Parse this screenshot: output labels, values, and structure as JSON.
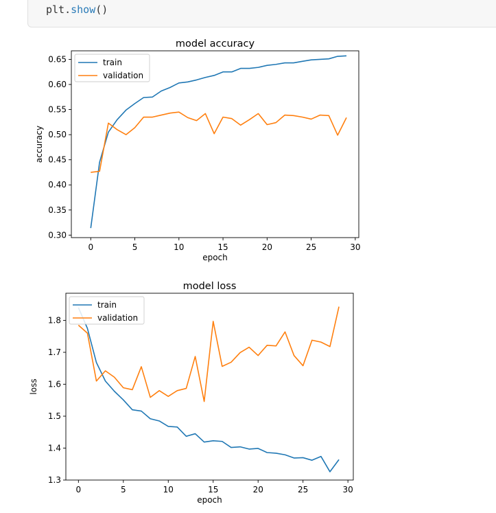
{
  "code_cell": {
    "object": "plt",
    "method": "show",
    "parens": "()"
  },
  "colors": {
    "train": "#1f77b4",
    "validation": "#ff7f0e",
    "code_background": "#f7f7f7",
    "code_border": "#e0e0e0"
  },
  "chart_data": [
    {
      "type": "line",
      "title": "model accuracy",
      "xlabel": "epoch",
      "ylabel": "accuracy",
      "xlim": [
        -2.2,
        30.4
      ],
      "ylim": [
        0.295,
        0.667
      ],
      "xticks": [
        0,
        5,
        10,
        15,
        20,
        25,
        30
      ],
      "yticks": [
        0.3,
        0.35,
        0.4,
        0.45,
        0.5,
        0.55,
        0.6,
        0.65
      ],
      "ytick_labels": [
        "0.30",
        "0.35",
        "0.40",
        "0.45",
        "0.50",
        "0.55",
        "0.60",
        "0.65"
      ],
      "legend_position": "top-left",
      "x": [
        0,
        1,
        2,
        3,
        4,
        5,
        6,
        7,
        8,
        9,
        10,
        11,
        12,
        13,
        14,
        15,
        16,
        17,
        18,
        19,
        20,
        21,
        22,
        23,
        24,
        25,
        26,
        27,
        28,
        29
      ],
      "series": [
        {
          "name": "train",
          "color": "#1f77b4",
          "values": [
            0.314,
            0.445,
            0.505,
            0.53,
            0.549,
            0.562,
            0.574,
            0.575,
            0.587,
            0.594,
            0.603,
            0.605,
            0.609,
            0.614,
            0.618,
            0.625,
            0.625,
            0.632,
            0.632,
            0.634,
            0.638,
            0.64,
            0.643,
            0.643,
            0.646,
            0.649,
            0.65,
            0.651,
            0.656,
            0.657
          ]
        },
        {
          "name": "validation",
          "color": "#ff7f0e",
          "values": [
            0.425,
            0.427,
            0.523,
            0.51,
            0.5,
            0.514,
            0.535,
            0.535,
            0.539,
            0.543,
            0.545,
            0.534,
            0.528,
            0.542,
            0.502,
            0.535,
            0.532,
            0.519,
            0.53,
            0.542,
            0.52,
            0.524,
            0.539,
            0.538,
            0.535,
            0.531,
            0.539,
            0.538,
            0.499,
            0.534
          ]
        }
      ]
    },
    {
      "type": "line",
      "title": "model loss",
      "xlabel": "epoch",
      "ylabel": "loss",
      "xlim": [
        -1.4,
        30.6
      ],
      "ylim": [
        1.3,
        1.885
      ],
      "xticks": [
        0,
        5,
        10,
        15,
        20,
        25,
        30
      ],
      "yticks": [
        1.3,
        1.4,
        1.5,
        1.6,
        1.7,
        1.8
      ],
      "ytick_labels": [
        "1.3",
        "1.4",
        "1.5",
        "1.6",
        "1.7",
        "1.8"
      ],
      "legend_position": "top-left",
      "x": [
        0,
        1,
        2,
        3,
        4,
        5,
        6,
        7,
        8,
        9,
        10,
        11,
        12,
        13,
        14,
        15,
        16,
        17,
        18,
        19,
        20,
        21,
        22,
        23,
        24,
        25,
        26,
        27,
        28,
        29
      ],
      "series": [
        {
          "name": "train",
          "color": "#1f77b4",
          "values": [
            1.84,
            1.775,
            1.668,
            1.61,
            1.578,
            1.551,
            1.52,
            1.516,
            1.492,
            1.485,
            1.468,
            1.466,
            1.437,
            1.445,
            1.419,
            1.423,
            1.421,
            1.402,
            1.404,
            1.397,
            1.399,
            1.386,
            1.384,
            1.379,
            1.369,
            1.37,
            1.362,
            1.374,
            1.326,
            1.364
          ]
        },
        {
          "name": "validation",
          "color": "#ff7f0e",
          "values": [
            1.785,
            1.76,
            1.61,
            1.642,
            1.622,
            1.589,
            1.583,
            1.655,
            1.559,
            1.58,
            1.562,
            1.58,
            1.587,
            1.687,
            1.546,
            1.797,
            1.656,
            1.669,
            1.699,
            1.716,
            1.69,
            1.722,
            1.72,
            1.764,
            1.69,
            1.658,
            1.738,
            1.732,
            1.718,
            1.843
          ]
        }
      ]
    }
  ]
}
